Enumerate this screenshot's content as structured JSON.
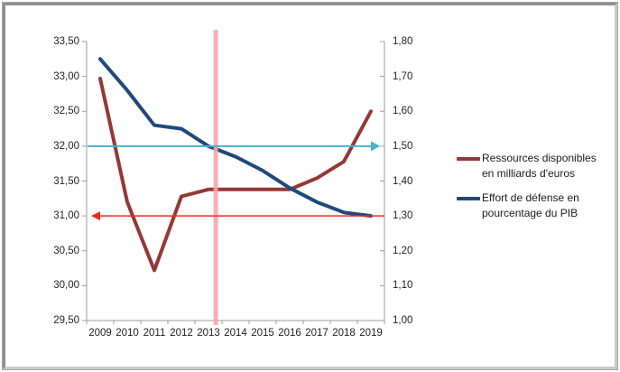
{
  "chart_data": {
    "type": "line",
    "categories": [
      "2009",
      "2010",
      "2011",
      "2012",
      "2013",
      "2014",
      "2015",
      "2016",
      "2017",
      "2018",
      "2019"
    ],
    "series": [
      {
        "name": "Ressources disponibles en milliards d'euros",
        "axis": "left",
        "color": "#953735",
        "values": [
          32.97,
          31.2,
          30.22,
          31.28,
          31.38,
          31.38,
          31.38,
          31.38,
          31.54,
          31.78,
          32.5
        ]
      },
      {
        "name": "Effort de défense en pourcentage du PIB",
        "axis": "right",
        "color": "#1F497D",
        "values": [
          1.75,
          1.66,
          1.56,
          1.55,
          1.5,
          1.47,
          1.43,
          1.38,
          1.34,
          1.31,
          1.3
        ]
      }
    ],
    "left_axis": {
      "min": 29.5,
      "max": 33.5,
      "tick_labels_top_to_bottom": [
        "33,50",
        "33,00",
        "32,50",
        "32,00",
        "31,50",
        "31,00",
        "30,50",
        "30,00",
        "29,50"
      ]
    },
    "right_axis": {
      "min": 1.0,
      "max": 1.8,
      "tick_labels_top_to_bottom": [
        "1,80",
        "1,70",
        "1,60",
        "1,50",
        "1,40",
        "1,30",
        "1,20",
        "1,10",
        "1,00"
      ]
    },
    "grid": "off",
    "annotations": {
      "teal_target_line": {
        "value_right_axis": 1.5,
        "color": "#45B2CE",
        "arrow_direction": "right"
      },
      "red_floor_line": {
        "value_right_axis": 1.3,
        "color": "#F02820",
        "arrow_direction": "left"
      },
      "vertical_band": {
        "position_category_units": 4.77,
        "color": "#F7A6AA"
      }
    },
    "legend": {
      "position": "right",
      "items": [
        {
          "lines": [
            "Ressources disponibles",
            "en milliards d'euros"
          ],
          "color": "#953735"
        },
        {
          "lines": [
            "Effort de défense en",
            "pourcentage du PIB"
          ],
          "color": "#1F497D"
        }
      ]
    }
  }
}
